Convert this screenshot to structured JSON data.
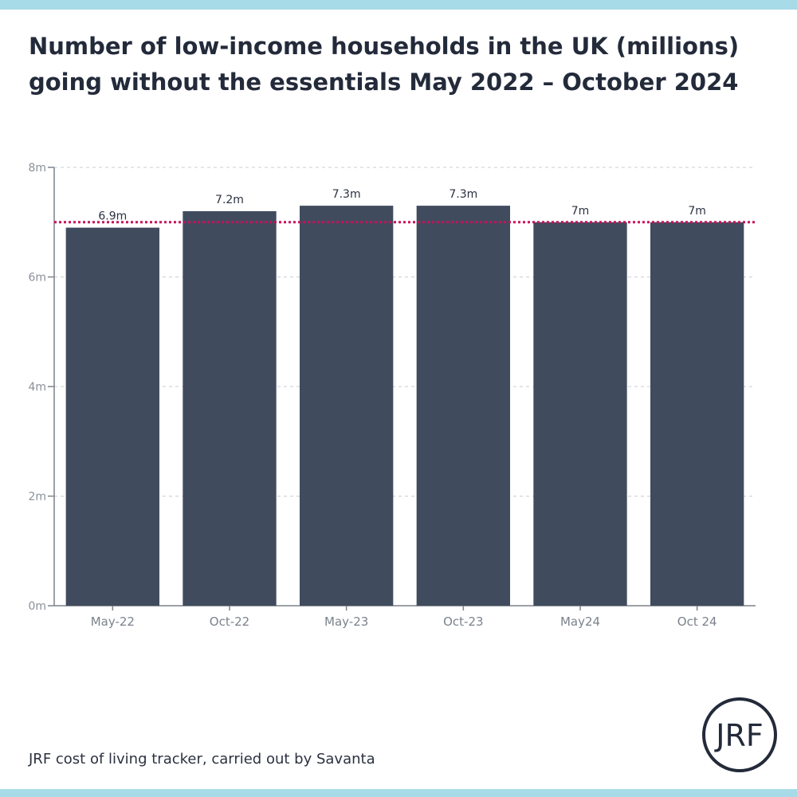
{
  "title_line1": "Number of low-income households in the UK (millions)",
  "title_line2": "going without the essentials May 2022 – October 2024",
  "source": "JRF cost of living tracker, carried out by Savanta",
  "logo": {
    "text": "JRF"
  },
  "colors": {
    "bar": "#404c5e",
    "reference_line": "#c8105a",
    "stripe": "#a8dbe8",
    "text": "#232a3a"
  },
  "chart_data": {
    "type": "bar",
    "title": "Number of low-income households in the UK (millions) going without the essentials May 2022 – October 2024",
    "xlabel": "",
    "ylabel": "",
    "categories": [
      "May-22",
      "Oct-22",
      "May-23",
      "Oct-23",
      "May24",
      "Oct 24"
    ],
    "values": [
      6.9,
      7.2,
      7.3,
      7.3,
      7.0,
      7.0
    ],
    "data_labels": [
      "6.9m",
      "7.2m",
      "7.3m",
      "7.3m",
      "7m",
      "7m"
    ],
    "ylim": [
      0,
      8
    ],
    "y_ticks": [
      0,
      2,
      4,
      6,
      8
    ],
    "y_tick_labels": [
      "0m",
      "2m",
      "4m",
      "6m",
      "8m"
    ],
    "reference_line": {
      "value": 7.0,
      "style": "dotted"
    },
    "grid": true
  }
}
